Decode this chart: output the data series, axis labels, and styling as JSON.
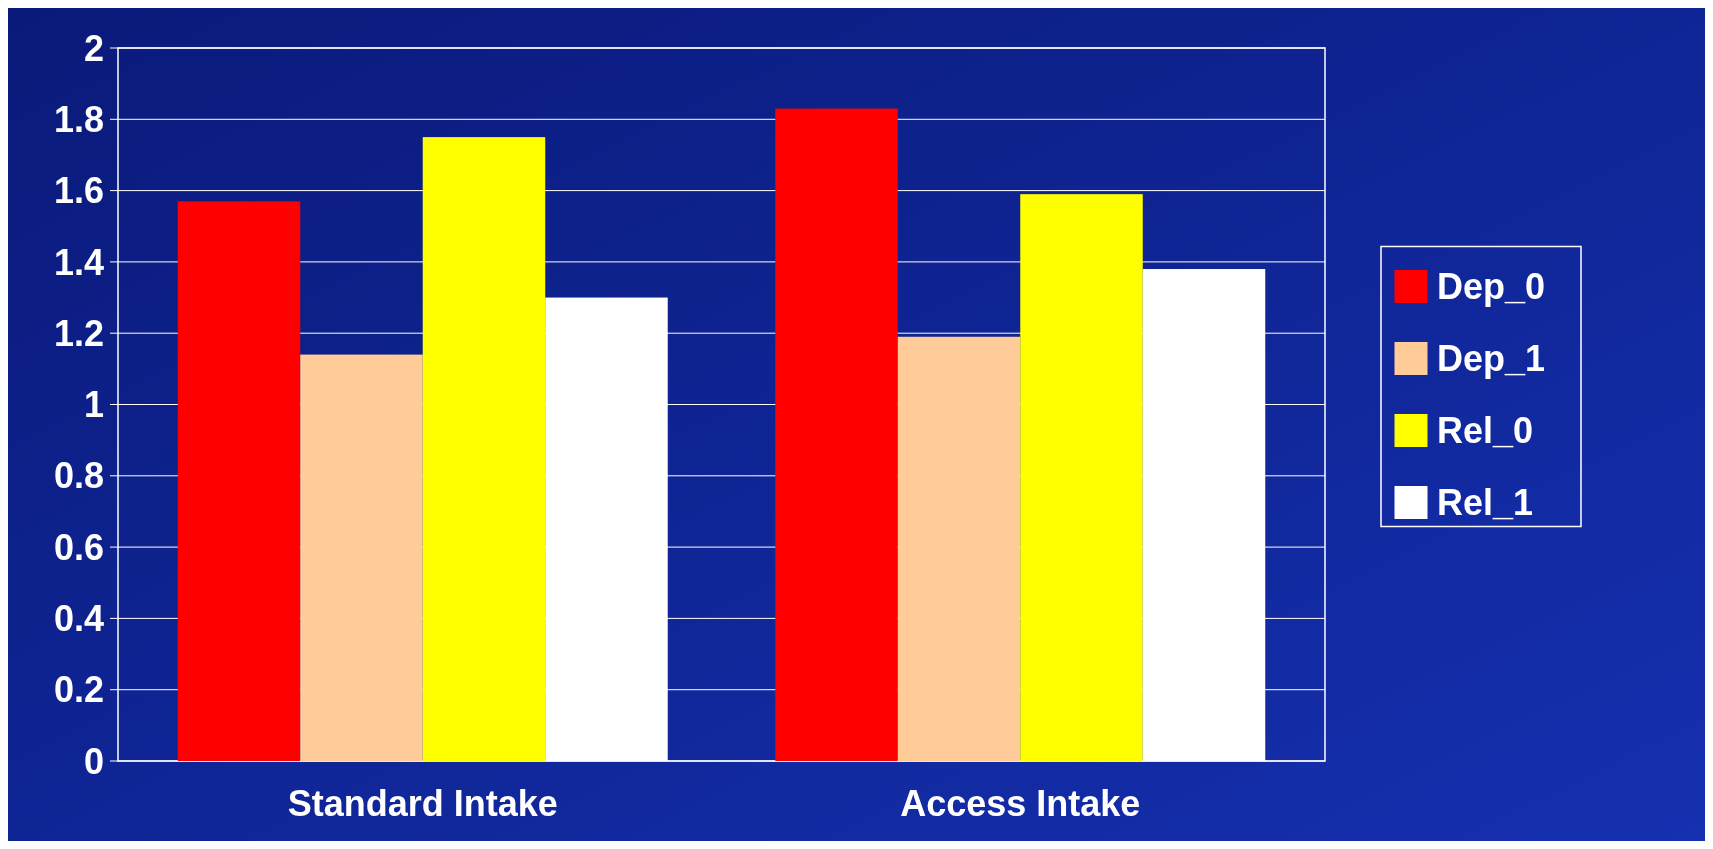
{
  "chart_data": {
    "type": "bar",
    "categories": [
      "Standard Intake",
      "Access Intake"
    ],
    "series": [
      {
        "name": "Dep_0",
        "color": "#ff0000",
        "values": [
          1.57,
          1.83
        ]
      },
      {
        "name": "Dep_1",
        "color": "#ffcc99",
        "values": [
          1.14,
          1.19
        ]
      },
      {
        "name": "Rel_0",
        "color": "#ffff00",
        "values": [
          1.75,
          1.59
        ]
      },
      {
        "name": "Rel_1",
        "color": "#ffffff",
        "values": [
          1.3,
          1.38
        ]
      }
    ],
    "ylim": [
      0,
      2
    ],
    "yticks": [
      0,
      0.2,
      0.4,
      0.6,
      0.8,
      1,
      1.2,
      1.4,
      1.6,
      1.8,
      2
    ],
    "grid": "y",
    "legend": "right"
  }
}
